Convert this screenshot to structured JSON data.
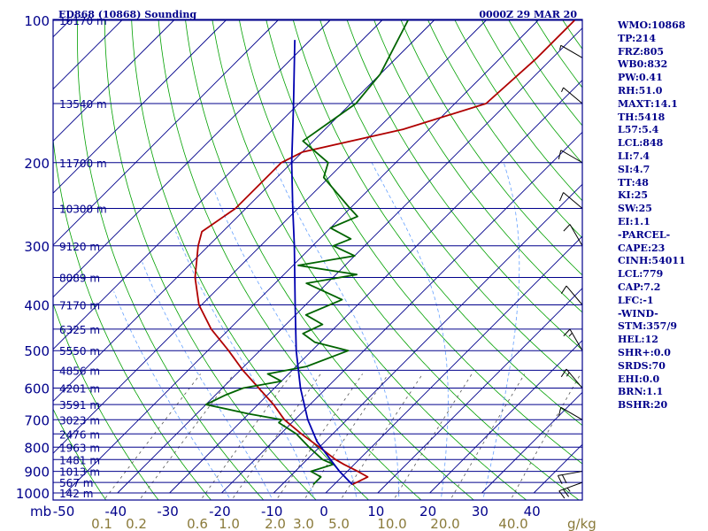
{
  "header": {
    "station": "ED868 (10868) Sounding",
    "time": "0000Z 29 MAR 20"
  },
  "colors": {
    "frame": "#00008b",
    "isobar": "#00008b",
    "isotherm": "#00008b",
    "dry_adiabat": "#00a000",
    "moist_adiabat": "#64a0ff",
    "mixing_ratio": "#555555",
    "temperature": "#b00000",
    "dewpoint": "#006400",
    "parcel": "#0000b0",
    "wind": "#000000",
    "text": "#00008b",
    "mixratio_label": "#8a7a3a"
  },
  "params": [
    "WMO:10868",
    "TP:214",
    "FRZ:805",
    "WB0:832",
    "PW:0.41",
    "RH:51.0",
    "MAXT:14.1",
    "TH:5418",
    "L57:5.4",
    "LCL:848",
    "LI:7.4",
    "SI:4.7",
    "TT:48",
    "KI:25",
    "SW:25",
    "EI:1.1",
    "-PARCEL-",
    "CAPE:23",
    "CINH:54011",
    "LCL:779",
    "CAP:7.2",
    "LFC:-1",
    "-WIND-",
    "STM:357/9",
    "HEL:12",
    "SHR+:0.0",
    "SRDS:70",
    "EHI:0.0",
    "BRN:1.1",
    "BSHR:20"
  ],
  "chart_data": {
    "type": "line",
    "diagram": "skew-T log-P",
    "xlabel": "",
    "ylabel": "mb",
    "y_scale": "log",
    "y_inverted": true,
    "xlim": [
      -50,
      50
    ],
    "ylim": [
      1000,
      100
    ],
    "pressure_ticks": [
      100,
      200,
      300,
      400,
      500,
      600,
      700,
      800,
      900,
      1000
    ],
    "pressure_tick_labels": [
      "100",
      "200",
      "300",
      "400",
      "500",
      "600",
      "700",
      "800",
      "900",
      "1000"
    ],
    "temperature_ticks": [
      -50,
      -40,
      -30,
      -20,
      -10,
      0,
      10,
      20,
      30,
      40
    ],
    "temperature_tick_labels": [
      "-50",
      "-40",
      "-30",
      "-20",
      "-10",
      "0",
      "10",
      "20",
      "30",
      "40"
    ],
    "height_labels": [
      {
        "p": 100,
        "label": "16170 m"
      },
      {
        "p": 150,
        "label": "13540 m"
      },
      {
        "p": 200,
        "label": "11700 m"
      },
      {
        "p": 250,
        "label": "10300 m"
      },
      {
        "p": 300,
        "label": "9120 m"
      },
      {
        "p": 350,
        "label": "8089 m"
      },
      {
        "p": 400,
        "label": "7170 m"
      },
      {
        "p": 450,
        "label": "6325 m"
      },
      {
        "p": 500,
        "label": "5550 m"
      },
      {
        "p": 550,
        "label": "4856 m"
      },
      {
        "p": 600,
        "label": "4201 m"
      },
      {
        "p": 650,
        "label": "3591 m"
      },
      {
        "p": 700,
        "label": "3023 m"
      },
      {
        "p": 750,
        "label": "2476 m"
      },
      {
        "p": 800,
        "label": "1963 m"
      },
      {
        "p": 850,
        "label": "1481 m"
      },
      {
        "p": 900,
        "label": "1013 m"
      },
      {
        "p": 950,
        "label": "567 m"
      },
      {
        "p": 1000,
        "label": "142 m"
      }
    ],
    "mixing_ratio_labels": [
      "0.1",
      "0.2",
      "0.6",
      "1.0",
      "2.0",
      "3.0",
      "5.0",
      "10.0",
      "20.0",
      "40.0"
    ],
    "mixing_ratio_unit": "g/kg",
    "series": [
      {
        "role": "temperature",
        "p": [
          960,
          925,
          900,
          870,
          850,
          800,
          750,
          700,
          650,
          600,
          550,
          500,
          450,
          400,
          350,
          300,
          280,
          250,
          220,
          200,
          190,
          170,
          150,
          120,
          100
        ],
        "T": [
          3.5,
          5.0,
          2.0,
          -2.0,
          -4.5,
          -10.0,
          -16.0,
          -22.0,
          -27.0,
          -33.0,
          -39.5,
          -46.0,
          -53.5,
          -60.5,
          -66.5,
          -72.0,
          -74.0,
          -72.0,
          -72.0,
          -72.0,
          -70.0,
          -55.0,
          -44.0,
          -43.0,
          -43.0
        ]
      },
      {
        "role": "dewpoint",
        "p": [
          960,
          925,
          900,
          870,
          850,
          800,
          750,
          710,
          700,
          680,
          650,
          620,
          600,
          580,
          560,
          540,
          500,
          480,
          460,
          440,
          420,
          390,
          360,
          345,
          330,
          315,
          300,
          290,
          275,
          260,
          250,
          215,
          200,
          180,
          150,
          130,
          100
        ],
        "T": [
          -4.0,
          -4.0,
          -7.0,
          -4.0,
          -7.0,
          -12.0,
          -17.0,
          -22.5,
          -22.5,
          -30.0,
          -40.0,
          -38.0,
          -36.0,
          -30.0,
          -34.0,
          -28.0,
          -23.0,
          -31.0,
          -35.0,
          -33.0,
          -38.0,
          -34.0,
          -44.0,
          -36.0,
          -49.0,
          -40.0,
          -46.0,
          -44.0,
          -50.0,
          -47.0,
          -50.0,
          -61.0,
          -63.0,
          -72.0,
          -69.0,
          -70.0,
          -75.0
        ]
      },
      {
        "role": "parcel",
        "p": [
          960,
          900,
          850,
          779,
          700,
          600,
          500,
          400,
          300,
          250,
          200,
          150,
          110
        ],
        "T": [
          3.5,
          -1.5,
          -5.5,
          -11.5,
          -17.5,
          -25.0,
          -33.0,
          -42.0,
          -53.5,
          -61.0,
          -70.0,
          -81.0,
          -93.0
        ]
      }
    ],
    "wind_barbs": [
      {
        "p": 950,
        "dir": 250,
        "kt": 25
      },
      {
        "p": 900,
        "dir": 260,
        "kt": 20
      },
      {
        "p": 700,
        "dir": 300,
        "kt": 10
      },
      {
        "p": 600,
        "dir": 320,
        "kt": 15
      },
      {
        "p": 500,
        "dir": 330,
        "kt": 15
      },
      {
        "p": 400,
        "dir": 320,
        "kt": 10
      },
      {
        "p": 300,
        "dir": 330,
        "kt": 10
      },
      {
        "p": 250,
        "dir": 310,
        "kt": 10
      },
      {
        "p": 200,
        "dir": 300,
        "kt": 10
      },
      {
        "p": 150,
        "dir": 310,
        "kt": 5
      },
      {
        "p": 120,
        "dir": 300,
        "kt": 5
      }
    ]
  }
}
